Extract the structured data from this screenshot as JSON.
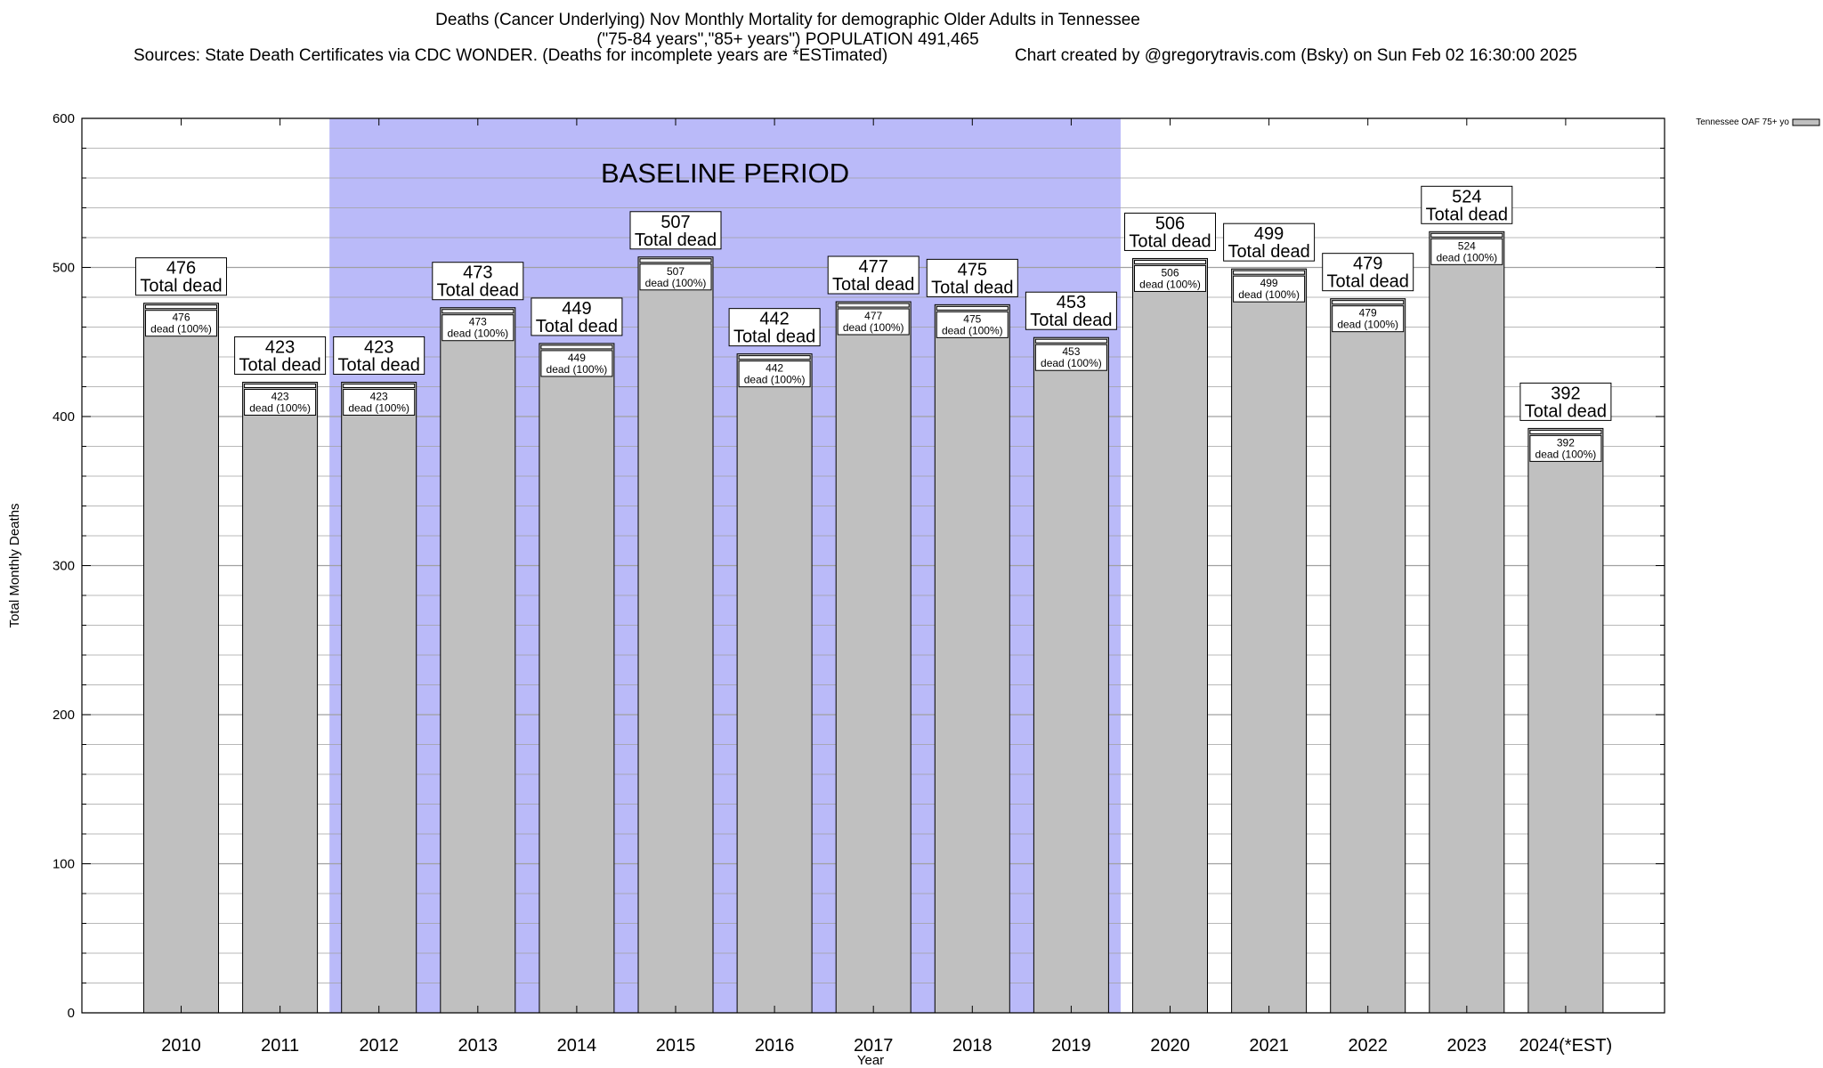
{
  "title": {
    "line1": "Deaths (Cancer Underlying) Nov Monthly Mortality for demographic Older Adults in Tennessee",
    "line2": "(\"75-84 years\",\"85+ years\") POPULATION 491,465",
    "sources": "Sources: State Death Certificates via CDC WONDER. (Deaths for incomplete years are *ESTimated)",
    "credit": "Chart created by @gregorytravis.com (Bsky) on Sun Feb 02 16:30:00 2025"
  },
  "colors": {
    "bar_fill": "#c0c0c0",
    "baseline_fill": "#babaf9",
    "grid": "#a0a0a0",
    "axis": "#000000"
  },
  "chart_data": {
    "type": "bar",
    "xlabel": "Year",
    "ylabel": "Total Monthly Deaths",
    "ylim": [
      0,
      600
    ],
    "yticks": [
      0,
      100,
      200,
      300,
      400,
      500,
      600
    ],
    "grid": true,
    "legend": {
      "label": "Tennessee OAF 75+ yo",
      "position": "top-right"
    },
    "categories": [
      "2010",
      "2011",
      "2012",
      "2013",
      "2014",
      "2015",
      "2016",
      "2017",
      "2018",
      "2019",
      "2020",
      "2021",
      "2022",
      "2023",
      "2024(*EST)"
    ],
    "series": [
      {
        "name": "Tennessee OAF 75+ yo",
        "values": [
          476,
          423,
          423,
          473,
          449,
          507,
          442,
          477,
          475,
          453,
          506,
          499,
          479,
          524,
          392
        ]
      }
    ],
    "total_label": "Total dead",
    "inner_label_suffix": "dead (100%)",
    "baseline_period": {
      "label": "BASELINE PERIOD",
      "from": "2012",
      "to": "2019"
    }
  }
}
